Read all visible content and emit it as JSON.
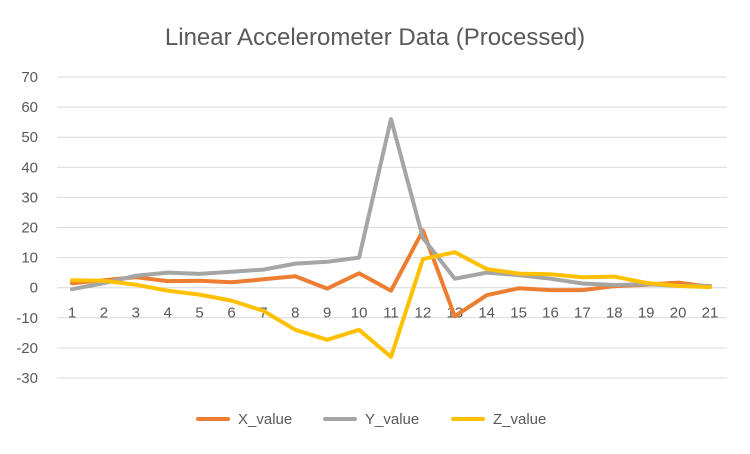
{
  "chart_data": {
    "type": "line",
    "title": "Linear Accelerometer Data (Processed)",
    "xlabel": "",
    "ylabel": "",
    "categories": [
      "1",
      "2",
      "3",
      "4",
      "5",
      "6",
      "7",
      "8",
      "9",
      "10",
      "11",
      "12",
      "13",
      "14",
      "15",
      "16",
      "17",
      "18",
      "19",
      "20",
      "21"
    ],
    "ylim": [
      -30,
      70
    ],
    "yticks": [
      "70",
      "60",
      "50",
      "40",
      "30",
      "20",
      "10",
      "0",
      "-10",
      "-20",
      "-30"
    ],
    "grid": true,
    "legend": "bottom",
    "series": [
      {
        "name": "X_value",
        "color": "#ED7D31",
        "values": [
          1.5,
          2.5,
          3.5,
          2.2,
          2.3,
          1.8,
          2.8,
          3.8,
          -0.3,
          4.8,
          -1.0,
          19.0,
          -9.5,
          -2.5,
          -0.2,
          -0.8,
          -0.8,
          0.5,
          1.0,
          1.7,
          0.3
        ]
      },
      {
        "name": "Y_value",
        "color": "#A5A5A5",
        "values": [
          -0.5,
          1.5,
          4.0,
          5.0,
          4.6,
          5.3,
          6.0,
          8.0,
          8.6,
          10.0,
          56.0,
          16.5,
          3.0,
          5.0,
          4.2,
          3.0,
          1.4,
          0.9,
          1.2,
          0.6,
          0.6
        ]
      },
      {
        "name": "Z_value",
        "color": "#FFC000",
        "values": [
          2.5,
          2.3,
          1.0,
          -1.0,
          -2.3,
          -4.3,
          -7.7,
          -14.0,
          -17.3,
          -14.0,
          -23.0,
          9.5,
          11.8,
          6.2,
          4.7,
          4.5,
          3.5,
          3.7,
          1.6,
          0.6,
          0.2
        ]
      }
    ]
  }
}
